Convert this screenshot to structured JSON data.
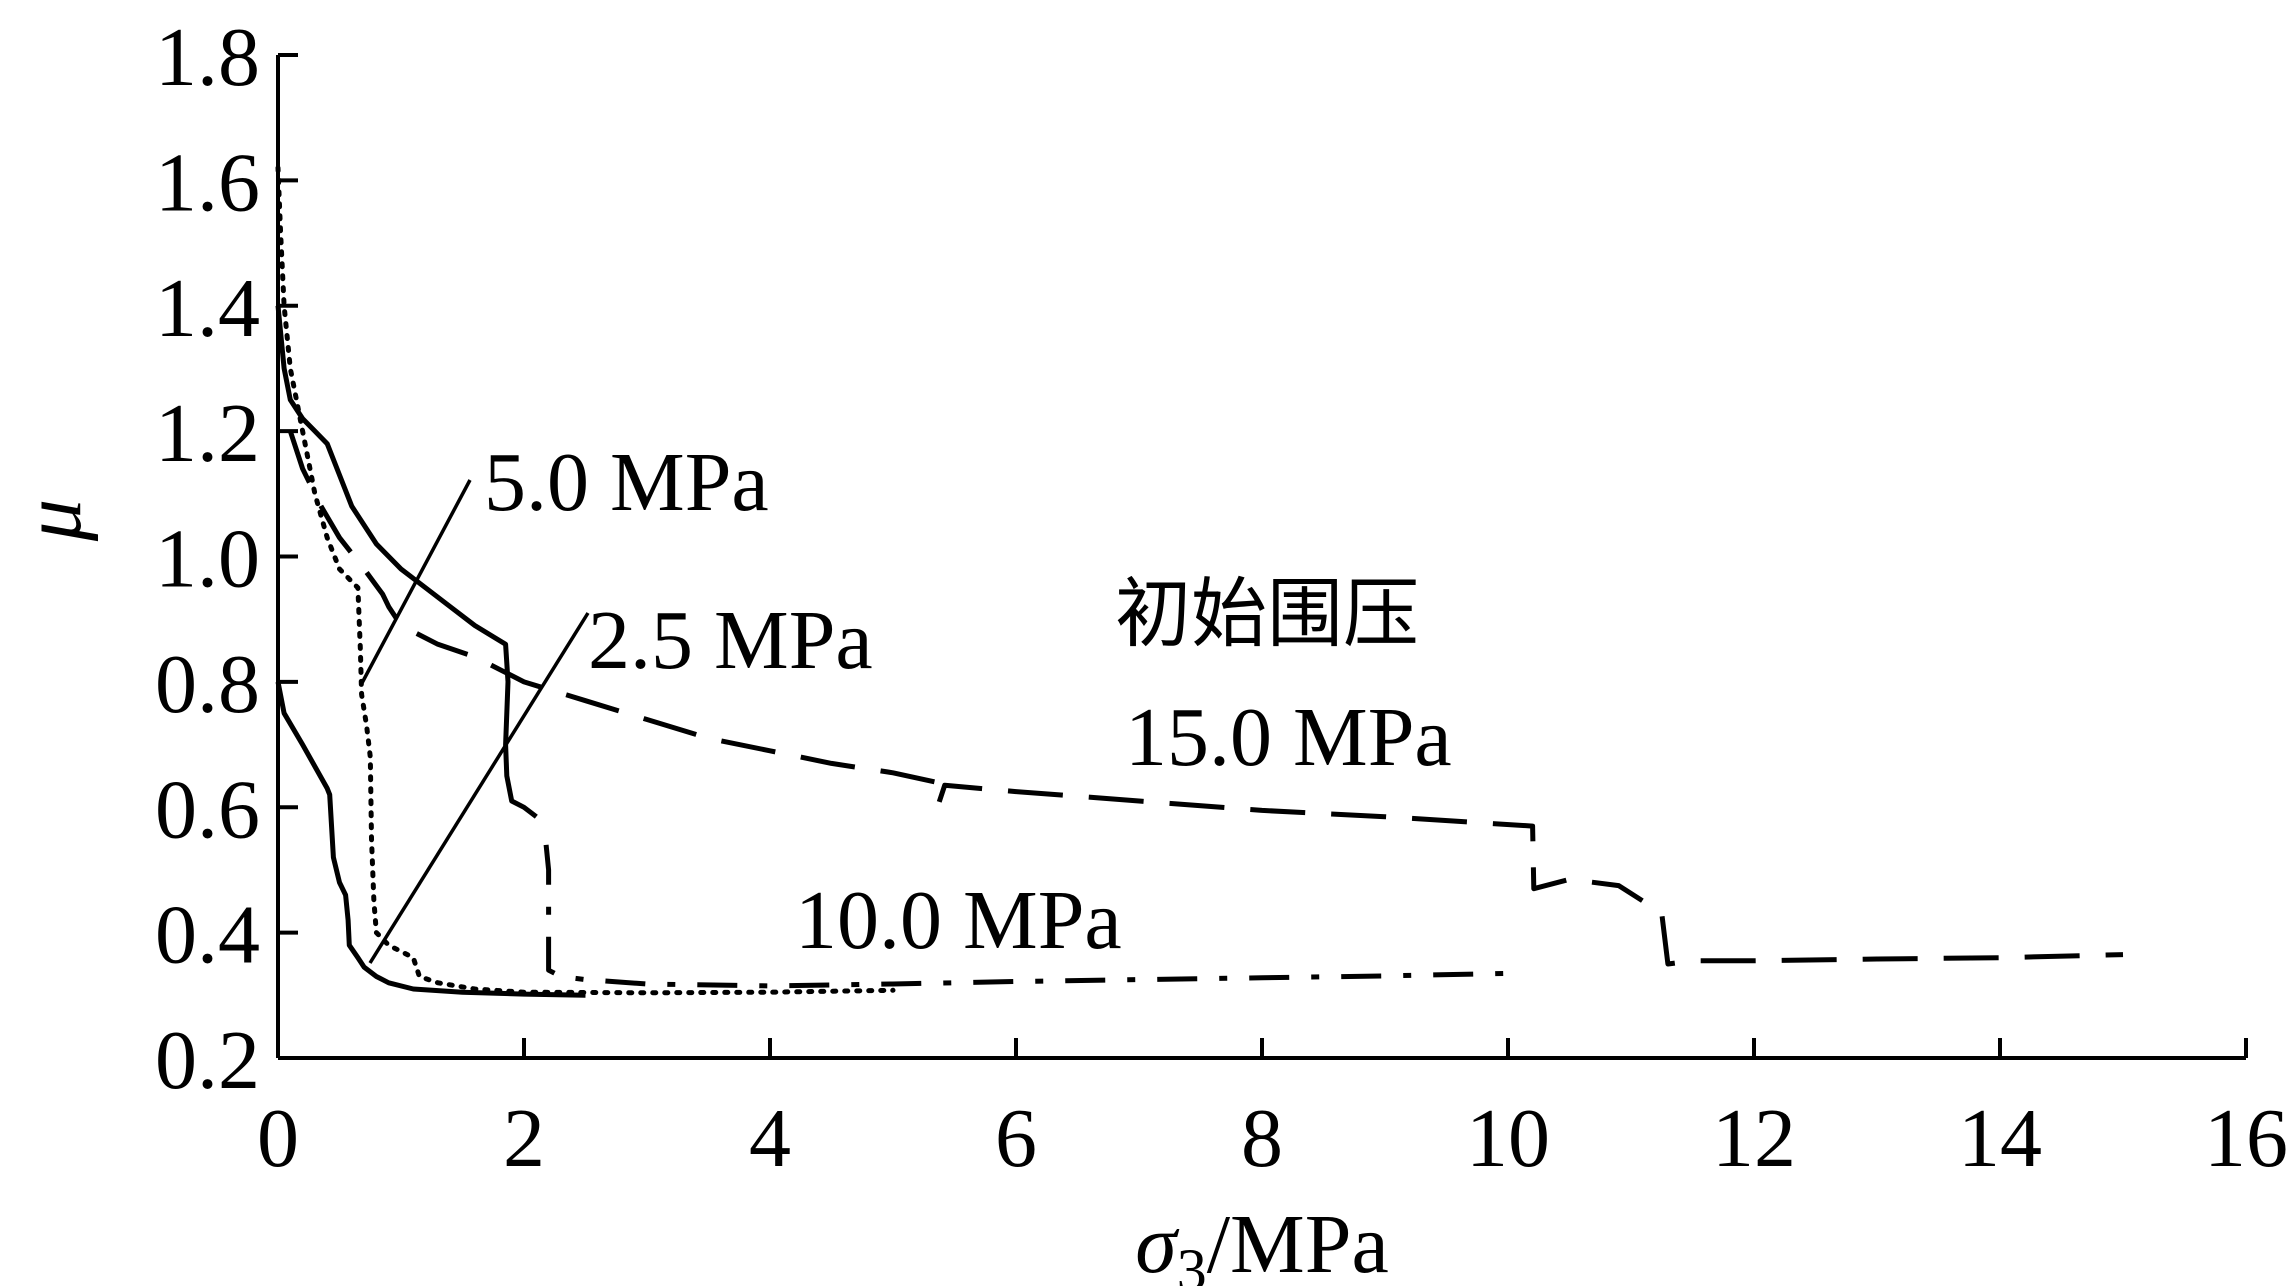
{
  "chart_data": {
    "type": "line",
    "xlabel": {
      "symbol": "σ",
      "sub": "3",
      "unit": "/MPa"
    },
    "ylabel": "μ",
    "xlim": [
      0,
      16
    ],
    "ylim": [
      0.2,
      1.8
    ],
    "xticks": [
      0,
      2,
      4,
      6,
      8,
      10,
      12,
      14,
      16
    ],
    "yticks": [
      0.2,
      0.4,
      0.6,
      0.8,
      1.0,
      1.2,
      1.4,
      1.6,
      1.8
    ],
    "xtick_labels": [
      "0",
      "2",
      "4",
      "6",
      "8",
      "10",
      "12",
      "14",
      "16"
    ],
    "ytick_labels": [
      "0.2",
      "0.4",
      "0.6",
      "0.8",
      "1.0",
      "1.2",
      "1.4",
      "1.6",
      "1.8"
    ],
    "annotations": {
      "label_5": "5.0 MPa",
      "label_25": "2.5 MPa",
      "label_10": "10.0 MPa",
      "label_initial": "初始围压",
      "label_15": "15.0 MPa"
    },
    "series": [
      {
        "name": "2.5 MPa",
        "style": "solid",
        "points": [
          [
            0,
            0.8
          ],
          [
            0.05,
            0.75
          ],
          [
            0.2,
            0.7
          ],
          [
            0.4,
            0.63
          ],
          [
            0.42,
            0.62
          ],
          [
            0.45,
            0.52
          ],
          [
            0.5,
            0.48
          ],
          [
            0.55,
            0.46
          ],
          [
            0.57,
            0.42
          ],
          [
            0.58,
            0.38
          ],
          [
            0.65,
            0.36
          ],
          [
            0.7,
            0.345
          ],
          [
            0.8,
            0.33
          ],
          [
            0.9,
            0.32
          ],
          [
            1.1,
            0.31
          ],
          [
            1.5,
            0.305
          ],
          [
            2.0,
            0.302
          ],
          [
            2.5,
            0.3
          ]
        ]
      },
      {
        "name": "5.0 MPa",
        "style": "dotted",
        "points": [
          [
            0,
            1.62
          ],
          [
            0.02,
            1.52
          ],
          [
            0.05,
            1.4
          ],
          [
            0.1,
            1.3
          ],
          [
            0.2,
            1.2
          ],
          [
            0.3,
            1.1
          ],
          [
            0.4,
            1.03
          ],
          [
            0.5,
            0.98
          ],
          [
            0.6,
            0.96
          ],
          [
            0.65,
            0.95
          ],
          [
            0.67,
            0.85
          ],
          [
            0.68,
            0.78
          ],
          [
            0.72,
            0.73
          ],
          [
            0.75,
            0.68
          ],
          [
            0.76,
            0.55
          ],
          [
            0.78,
            0.45
          ],
          [
            0.8,
            0.4
          ],
          [
            0.9,
            0.38
          ],
          [
            1.0,
            0.37
          ],
          [
            1.1,
            0.36
          ],
          [
            1.15,
            0.33
          ],
          [
            1.3,
            0.32
          ],
          [
            1.6,
            0.31
          ],
          [
            2.0,
            0.305
          ],
          [
            3.0,
            0.304
          ],
          [
            4.0,
            0.305
          ],
          [
            5.0,
            0.308
          ]
        ]
      },
      {
        "name": "10.0 MPa",
        "style": "solid",
        "points": [
          [
            0,
            1.4
          ],
          [
            0.05,
            1.3
          ],
          [
            0.1,
            1.25
          ],
          [
            0.2,
            1.22
          ],
          [
            0.3,
            1.2
          ],
          [
            0.4,
            1.18
          ],
          [
            0.5,
            1.13
          ],
          [
            0.6,
            1.08
          ],
          [
            0.8,
            1.02
          ],
          [
            1.0,
            0.98
          ],
          [
            1.2,
            0.95
          ],
          [
            1.4,
            0.92
          ],
          [
            1.6,
            0.89
          ],
          [
            1.85,
            0.86
          ],
          [
            1.87,
            0.8
          ],
          [
            1.85,
            0.7
          ],
          [
            1.86,
            0.65
          ],
          [
            1.9,
            0.61
          ],
          [
            2.0,
            0.6
          ],
          [
            2.1,
            0.585
          ]
        ]
      },
      {
        "name": "10.0 MPa",
        "style": "dashdot",
        "points": [
          [
            2.18,
            0.54
          ],
          [
            2.2,
            0.5
          ],
          [
            2.2,
            0.34
          ],
          [
            2.3,
            0.33
          ],
          [
            2.5,
            0.325
          ],
          [
            3.0,
            0.318
          ],
          [
            4.0,
            0.315
          ],
          [
            5.0,
            0.318
          ],
          [
            6.0,
            0.322
          ],
          [
            7.0,
            0.325
          ],
          [
            8.0,
            0.328
          ],
          [
            9.0,
            0.331
          ],
          [
            10.0,
            0.335
          ]
        ]
      },
      {
        "name": "15.0 MPa",
        "style": "dashed",
        "points": [
          [
            0.1,
            1.2
          ],
          [
            0.2,
            1.14
          ],
          [
            0.35,
            1.08
          ],
          [
            0.5,
            1.03
          ],
          [
            0.7,
            0.98
          ],
          [
            0.85,
            0.94
          ],
          [
            0.9,
            0.92
          ],
          [
            1.0,
            0.89
          ],
          [
            1.3,
            0.86
          ],
          [
            1.6,
            0.84
          ],
          [
            2.0,
            0.8
          ],
          [
            2.5,
            0.77
          ],
          [
            3.0,
            0.74
          ],
          [
            3.5,
            0.71
          ],
          [
            4.0,
            0.69
          ],
          [
            4.5,
            0.67
          ],
          [
            5.0,
            0.655
          ],
          [
            5.35,
            0.64
          ],
          [
            5.37,
            0.605
          ],
          [
            5.42,
            0.635
          ],
          [
            6.0,
            0.625
          ],
          [
            7.0,
            0.61
          ],
          [
            8.0,
            0.595
          ],
          [
            9.0,
            0.585
          ],
          [
            10.2,
            0.57
          ],
          [
            10.21,
            0.47
          ],
          [
            10.5,
            0.485
          ],
          [
            10.9,
            0.475
          ],
          [
            11.1,
            0.45
          ],
          [
            11.25,
            0.43
          ],
          [
            11.3,
            0.35
          ],
          [
            11.5,
            0.355
          ],
          [
            12.0,
            0.355
          ],
          [
            13.0,
            0.358
          ],
          [
            14.0,
            0.36
          ],
          [
            15.0,
            0.365
          ]
        ]
      }
    ]
  }
}
